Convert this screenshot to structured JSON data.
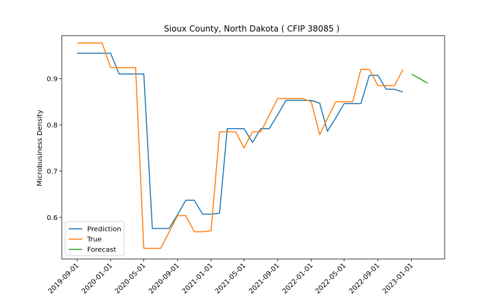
{
  "chart_data": {
    "type": "line",
    "title": "Sioux County, North Dakota ( CFIP 38085 )",
    "xlabel": "",
    "ylabel": "Microbusiness Density",
    "xlim": [
      "2019-07-07",
      "2023-05-02"
    ],
    "ylim": [
      0.51,
      0.993
    ],
    "x_ticks": [
      "2019-09-01",
      "2020-01-01",
      "2020-05-01",
      "2020-09-01",
      "2021-01-01",
      "2021-05-01",
      "2021-09-01",
      "2022-01-01",
      "2022-05-01",
      "2022-09-01",
      "2023-01-01"
    ],
    "y_ticks": [
      0.6,
      0.7,
      0.8,
      0.9
    ],
    "legend_position": "lower-left",
    "grid": false,
    "series": [
      {
        "name": "Prediction",
        "color": "#1f77b4",
        "points": [
          [
            "2019-09-01",
            0.955
          ],
          [
            "2019-10-01",
            0.955
          ],
          [
            "2019-11-01",
            0.955
          ],
          [
            "2019-12-01",
            0.955
          ],
          [
            "2020-01-01",
            0.955
          ],
          [
            "2020-02-01",
            0.91
          ],
          [
            "2020-03-01",
            0.91
          ],
          [
            "2020-04-01",
            0.91
          ],
          [
            "2020-05-01",
            0.91
          ],
          [
            "2020-06-01",
            0.576
          ],
          [
            "2020-07-01",
            0.576
          ],
          [
            "2020-08-01",
            0.576
          ],
          [
            "2020-09-01",
            0.606
          ],
          [
            "2020-10-01",
            0.637
          ],
          [
            "2020-11-01",
            0.637
          ],
          [
            "2020-12-01",
            0.607
          ],
          [
            "2021-01-01",
            0.607
          ],
          [
            "2021-02-01",
            0.609
          ],
          [
            "2021-03-01",
            0.792
          ],
          [
            "2021-04-01",
            0.792
          ],
          [
            "2021-05-01",
            0.792
          ],
          [
            "2021-06-01",
            0.762
          ],
          [
            "2021-07-01",
            0.792
          ],
          [
            "2021-08-01",
            0.792
          ],
          [
            "2021-09-01",
            0.822
          ],
          [
            "2021-10-01",
            0.853
          ],
          [
            "2021-11-01",
            0.853
          ],
          [
            "2021-12-01",
            0.853
          ],
          [
            "2022-01-01",
            0.853
          ],
          [
            "2022-02-01",
            0.847
          ],
          [
            "2022-03-01",
            0.786
          ],
          [
            "2022-04-01",
            0.816
          ],
          [
            "2022-05-01",
            0.846
          ],
          [
            "2022-06-01",
            0.846
          ],
          [
            "2022-07-01",
            0.846
          ],
          [
            "2022-08-01",
            0.907
          ],
          [
            "2022-09-01",
            0.907
          ],
          [
            "2022-10-01",
            0.877
          ],
          [
            "2022-11-01",
            0.877
          ],
          [
            "2022-12-01",
            0.871
          ]
        ]
      },
      {
        "name": "True",
        "color": "#ff7f0e",
        "points": [
          [
            "2019-09-01",
            0.977
          ],
          [
            "2019-10-01",
            0.977
          ],
          [
            "2019-11-01",
            0.977
          ],
          [
            "2019-12-01",
            0.977
          ],
          [
            "2020-01-01",
            0.924
          ],
          [
            "2020-02-01",
            0.924
          ],
          [
            "2020-03-01",
            0.924
          ],
          [
            "2020-04-01",
            0.924
          ],
          [
            "2020-05-01",
            0.533
          ],
          [
            "2020-06-01",
            0.533
          ],
          [
            "2020-07-01",
            0.533
          ],
          [
            "2020-08-01",
            0.568
          ],
          [
            "2020-09-01",
            0.604
          ],
          [
            "2020-10-01",
            0.604
          ],
          [
            "2020-11-01",
            0.569
          ],
          [
            "2020-12-01",
            0.569
          ],
          [
            "2021-01-01",
            0.571
          ],
          [
            "2021-02-01",
            0.785
          ],
          [
            "2021-03-01",
            0.785
          ],
          [
            "2021-04-01",
            0.785
          ],
          [
            "2021-05-01",
            0.75
          ],
          [
            "2021-06-01",
            0.785
          ],
          [
            "2021-07-01",
            0.785
          ],
          [
            "2021-08-01",
            0.821
          ],
          [
            "2021-09-01",
            0.857
          ],
          [
            "2021-10-01",
            0.857
          ],
          [
            "2021-11-01",
            0.857
          ],
          [
            "2021-12-01",
            0.857
          ],
          [
            "2022-01-01",
            0.85
          ],
          [
            "2022-02-01",
            0.779
          ],
          [
            "2022-03-01",
            0.814
          ],
          [
            "2022-04-01",
            0.85
          ],
          [
            "2022-05-01",
            0.85
          ],
          [
            "2022-06-01",
            0.85
          ],
          [
            "2022-07-01",
            0.92
          ],
          [
            "2022-08-01",
            0.92
          ],
          [
            "2022-09-01",
            0.885
          ],
          [
            "2022-10-01",
            0.885
          ],
          [
            "2022-11-01",
            0.885
          ],
          [
            "2022-12-01",
            0.92
          ]
        ]
      },
      {
        "name": "Forecast",
        "color": "#2ca02c",
        "points": [
          [
            "2023-01-01",
            0.91
          ],
          [
            "2023-02-01",
            0.9
          ],
          [
            "2023-03-01",
            0.89
          ]
        ]
      }
    ]
  }
}
